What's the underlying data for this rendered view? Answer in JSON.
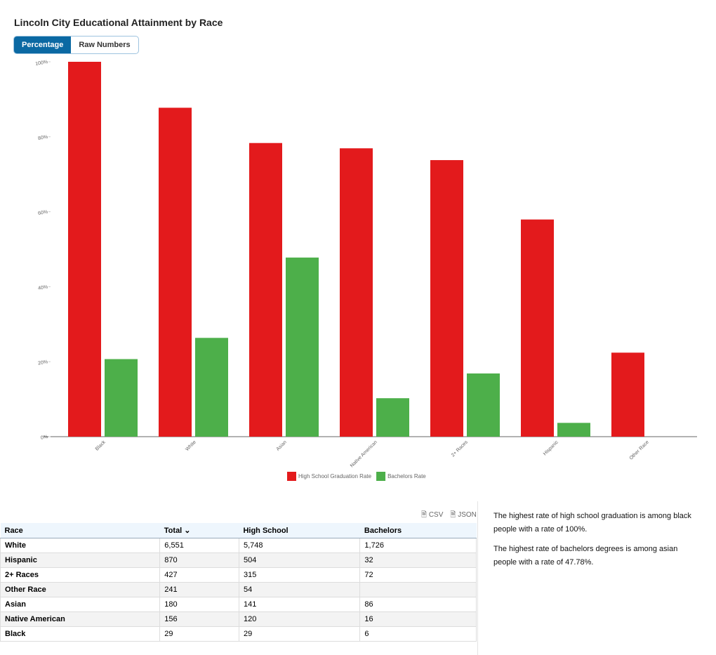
{
  "title": "Lincoln City Educational Attainment by Race",
  "tabs": [
    "Percentage",
    "Raw Numbers"
  ],
  "chart_data": {
    "type": "bar",
    "categories": [
      "Black",
      "White",
      "Asian",
      "Native American",
      "2+ Races",
      "Hispanic",
      "Other Race"
    ],
    "series": [
      {
        "name": "High School Graduation Rate",
        "color": "#e31a1c",
        "values": [
          100,
          87.74,
          78.33,
          76.92,
          73.77,
          57.93,
          22.41
        ]
      },
      {
        "name": "Bachelors Rate",
        "color": "#4daf4a",
        "values": [
          20.69,
          26.35,
          47.78,
          10.26,
          16.86,
          3.68,
          null
        ]
      }
    ],
    "ylim": [
      0,
      100
    ],
    "yticks": [
      {
        "value": 0,
        "label": "0%"
      },
      {
        "value": 20,
        "label": "20%"
      },
      {
        "value": 40,
        "label": "40%"
      },
      {
        "value": 60,
        "label": "60%"
      },
      {
        "value": 80,
        "label": "80%"
      },
      {
        "value": 100,
        "label": "100%"
      }
    ],
    "grid": false,
    "legend": "bottom"
  },
  "downloads": [
    "CSV",
    "JSON"
  ],
  "table": {
    "columns": [
      "Race",
      "Total",
      "High School",
      "Bachelors"
    ],
    "rows": [
      [
        "White",
        "6,551",
        "5,748",
        "1,726"
      ],
      [
        "Hispanic",
        "870",
        "504",
        "32"
      ],
      [
        "2+ Races",
        "427",
        "315",
        "72"
      ],
      [
        "Other Race",
        "241",
        "54",
        null
      ],
      [
        "Asian",
        "180",
        "141",
        "86"
      ],
      [
        "Native American",
        "156",
        "120",
        "16"
      ],
      [
        "Black",
        "29",
        "29",
        "6"
      ]
    ]
  },
  "notes": [
    "The highest rate of high school graduation is among black people with a rate of 100%.",
    "The highest rate of bachelors degrees is among asian people with a rate of 47.78%."
  ]
}
